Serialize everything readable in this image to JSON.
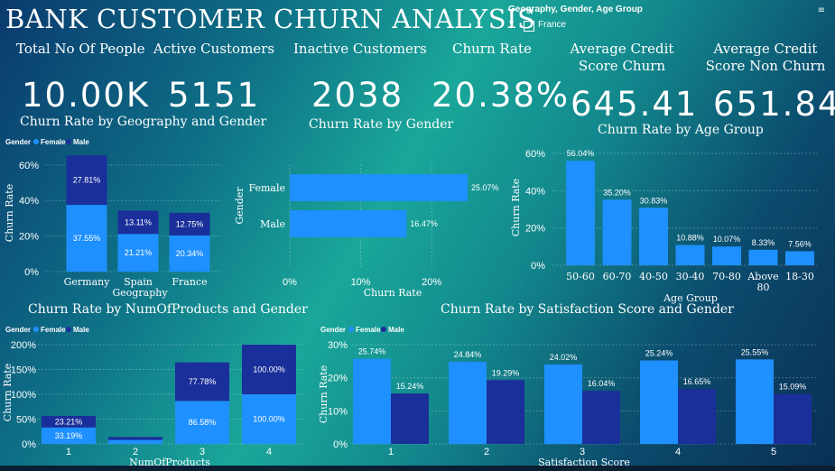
{
  "title": "BANK CUSTOMER CHURN ANALYSIS",
  "slicer": {
    "title": "Geography, Gender, Age Group",
    "option": "France",
    "chevron": "∨",
    "filter_icon": "≡"
  },
  "kpis": [
    {
      "label": "Total No Of People",
      "value": "10.00K"
    },
    {
      "label": "Active Customers",
      "value": "5151"
    },
    {
      "label": "Inactive Customers",
      "value": "2038"
    },
    {
      "label": "Churn Rate",
      "value": "20.38%"
    },
    {
      "label": "Average Credit Score Churn",
      "value": "645.41"
    },
    {
      "label": "Average Credit Score Non Churn",
      "value": "651.84"
    }
  ],
  "colors": {
    "female": "#1e90ff",
    "male": "#1a2f9a"
  },
  "chart_data": [
    {
      "id": "geo",
      "type": "bar",
      "stacked": true,
      "title": "Churn Rate by Geography and Gender",
      "legend_title": "Gender",
      "xlabel": "Geography",
      "ylabel": "Churn Rate",
      "categories": [
        "Germany",
        "Spain",
        "France"
      ],
      "series": [
        {
          "name": "Female",
          "values": [
            37.55,
            21.21,
            20.34
          ],
          "labels": [
            "37.55%",
            "21.21%",
            "20.34%"
          ]
        },
        {
          "name": "Male",
          "values": [
            27.81,
            13.11,
            12.75
          ],
          "labels": [
            "27.81%",
            "13.11%",
            "12.75%"
          ]
        }
      ],
      "ylim": [
        0,
        65
      ],
      "ticks": [
        0,
        20,
        40,
        60
      ],
      "tick_labels": [
        "0%",
        "20%",
        "40%",
        "60%"
      ]
    },
    {
      "id": "gender",
      "type": "bar",
      "orientation": "horizontal",
      "title": "Churn Rate by Gender",
      "xlabel": "Churn Rate",
      "ylabel": "Gender",
      "categories": [
        "Female",
        "Male"
      ],
      "values": [
        25.07,
        16.47
      ],
      "labels": [
        "25.07%",
        "16.47%"
      ],
      "xlim": [
        0,
        28
      ],
      "ticks": [
        0,
        10,
        20
      ],
      "tick_labels": [
        "0%",
        "10%",
        "20%"
      ]
    },
    {
      "id": "age",
      "type": "bar",
      "title": "Churn Rate by Age Group",
      "xlabel": "Age Group",
      "ylabel": "Churn Rate",
      "categories": [
        "50-60",
        "60-70",
        "40-50",
        "30-40",
        "70-80",
        "Above 80",
        "18-30"
      ],
      "values": [
        56.04,
        35.2,
        30.83,
        10.88,
        10.07,
        8.33,
        7.56
      ],
      "labels": [
        "56.04%",
        "35.20%",
        "30.83%",
        "10.88%",
        "10.07%",
        "8.33%",
        "7.56%"
      ],
      "ylim": [
        0,
        60
      ],
      "ticks": [
        0,
        20,
        40,
        60
      ],
      "tick_labels": [
        "0%",
        "20%",
        "40%",
        "60%"
      ]
    },
    {
      "id": "products",
      "type": "bar",
      "stacked": true,
      "title": "Churn Rate by NumOfProducts and Gender",
      "legend_title": "Gender",
      "xlabel": "NumOfProducts",
      "ylabel": "Churn Rate",
      "categories": [
        "1",
        "2",
        "3",
        "4"
      ],
      "series": [
        {
          "name": "Female",
          "values": [
            33.19,
            8.0,
            86.58,
            100.0
          ],
          "labels": [
            "33.19%",
            "",
            "86.58%",
            "100.00%"
          ]
        },
        {
          "name": "Male",
          "values": [
            23.21,
            6.0,
            77.78,
            100.0
          ],
          "labels": [
            "23.21%",
            "",
            "77.78%",
            "100.00%"
          ]
        }
      ],
      "ylim": [
        0,
        200
      ],
      "ticks": [
        0,
        50,
        100,
        150,
        200
      ],
      "tick_labels": [
        "0%",
        "50%",
        "100%",
        "150%",
        "200%"
      ]
    },
    {
      "id": "satisfaction",
      "type": "bar",
      "grouped": true,
      "title": "Churn Rate by Satisfaction Score and Gender",
      "legend_title": "Gender",
      "xlabel": "Satisfaction Score",
      "ylabel": "Churn Rate",
      "categories": [
        "1",
        "2",
        "3",
        "4",
        "5"
      ],
      "series": [
        {
          "name": "Female",
          "values": [
            25.74,
            24.84,
            24.02,
            25.24,
            25.55
          ],
          "labels": [
            "25.74%",
            "24.84%",
            "24.02%",
            "25.24%",
            "25.55%"
          ]
        },
        {
          "name": "Male",
          "values": [
            15.24,
            19.29,
            16.04,
            16.65,
            15.09
          ],
          "labels": [
            "15.24%",
            "19.29%",
            "16.04%",
            "16.65%",
            "15.09%"
          ]
        }
      ],
      "ylim": [
        0,
        30
      ],
      "ticks": [
        0,
        10,
        20,
        30
      ],
      "tick_labels": [
        "0%",
        "10%",
        "20%",
        "30%"
      ]
    }
  ]
}
